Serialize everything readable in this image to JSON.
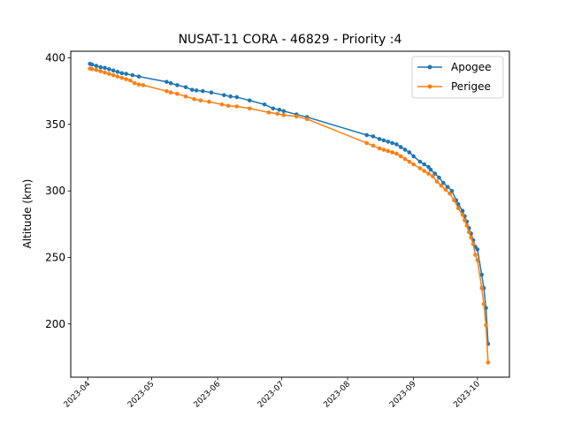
{
  "chart_data": {
    "type": "line",
    "title": "NUSAT-11 CORA - 46829 - Priority :4",
    "xlabel": "",
    "ylabel": "Altitude (km)",
    "x_tick_labels": [
      "2023-04",
      "2023-05",
      "2023-06",
      "2023-07",
      "2023-08",
      "2023-09",
      "2023-10"
    ],
    "y_ticks": [
      200,
      250,
      300,
      350,
      400
    ],
    "xlim": [
      "2023-03-24",
      "2023-10-16"
    ],
    "ylim": [
      160,
      405
    ],
    "legend": {
      "placement": "top-right"
    },
    "grid": false,
    "series": [
      {
        "name": "Apogee",
        "color": "#1f77b4",
        "points": [
          [
            "2023-04-02",
            395.5
          ],
          [
            "2023-04-03",
            395
          ],
          [
            "2023-04-05",
            394
          ],
          [
            "2023-04-07",
            393
          ],
          [
            "2023-04-09",
            392.5
          ],
          [
            "2023-04-11",
            391.5
          ],
          [
            "2023-04-13",
            390.5
          ],
          [
            "2023-04-15",
            389.5
          ],
          [
            "2023-04-17",
            388.5
          ],
          [
            "2023-04-19",
            388
          ],
          [
            "2023-04-22",
            387
          ],
          [
            "2023-04-25",
            386
          ],
          [
            "2023-05-08",
            382
          ],
          [
            "2023-05-10",
            381
          ],
          [
            "2023-05-13",
            379.5
          ],
          [
            "2023-05-17",
            378
          ],
          [
            "2023-05-20",
            376
          ],
          [
            "2023-05-22",
            375.5
          ],
          [
            "2023-05-25",
            375
          ],
          [
            "2023-05-29",
            374
          ],
          [
            "2023-06-04",
            372
          ],
          [
            "2023-06-07",
            371
          ],
          [
            "2023-06-10",
            370.5
          ],
          [
            "2023-06-16",
            368
          ],
          [
            "2023-06-23",
            365
          ],
          [
            "2023-06-27",
            362
          ],
          [
            "2023-06-30",
            361
          ],
          [
            "2023-07-02",
            360
          ],
          [
            "2023-07-08",
            357.5
          ],
          [
            "2023-07-13",
            355.5
          ],
          [
            "2023-08-10",
            342
          ],
          [
            "2023-08-13",
            341
          ],
          [
            "2023-08-16",
            339
          ],
          [
            "2023-08-18",
            338
          ],
          [
            "2023-08-20",
            337
          ],
          [
            "2023-08-22",
            336
          ],
          [
            "2023-08-24",
            335
          ],
          [
            "2023-08-26",
            333
          ],
          [
            "2023-08-28",
            331
          ],
          [
            "2023-08-30",
            329
          ],
          [
            "2023-09-01",
            326
          ],
          [
            "2023-09-04",
            322
          ],
          [
            "2023-09-06",
            320
          ],
          [
            "2023-09-08",
            318
          ],
          [
            "2023-09-09",
            316
          ],
          [
            "2023-09-11",
            313
          ],
          [
            "2023-09-13",
            310
          ],
          [
            "2023-09-15",
            306
          ],
          [
            "2023-09-17",
            303
          ],
          [
            "2023-09-19",
            300
          ],
          [
            "2023-09-21",
            293
          ],
          [
            "2023-09-22",
            290
          ],
          [
            "2023-09-24",
            285
          ],
          [
            "2023-09-25",
            281
          ],
          [
            "2023-09-26",
            277
          ],
          [
            "2023-09-27",
            272
          ],
          [
            "2023-09-28",
            268
          ],
          [
            "2023-09-29",
            263
          ],
          [
            "2023-09-30",
            258
          ],
          [
            "2023-10-01",
            256
          ],
          [
            "2023-10-03",
            237
          ],
          [
            "2023-10-04",
            227
          ],
          [
            "2023-10-05",
            212
          ],
          [
            "2023-10-06",
            185
          ]
        ]
      },
      {
        "name": "Perigee",
        "color": "#ff7f0e",
        "points": [
          [
            "2023-04-02",
            392
          ],
          [
            "2023-04-03",
            391.5
          ],
          [
            "2023-04-05",
            391
          ],
          [
            "2023-04-07",
            390
          ],
          [
            "2023-04-09",
            389
          ],
          [
            "2023-04-11",
            388
          ],
          [
            "2023-04-13",
            387
          ],
          [
            "2023-04-15",
            386
          ],
          [
            "2023-04-17",
            385
          ],
          [
            "2023-04-19",
            384
          ],
          [
            "2023-04-21",
            383
          ],
          [
            "2023-04-23",
            381
          ],
          [
            "2023-04-25",
            380
          ],
          [
            "2023-04-27",
            379.5
          ],
          [
            "2023-05-08",
            375
          ],
          [
            "2023-05-10",
            374
          ],
          [
            "2023-05-13",
            373
          ],
          [
            "2023-05-17",
            371
          ],
          [
            "2023-05-21",
            369
          ],
          [
            "2023-05-24",
            368
          ],
          [
            "2023-05-28",
            367
          ],
          [
            "2023-06-03",
            365
          ],
          [
            "2023-06-06",
            364
          ],
          [
            "2023-06-10",
            363.5
          ],
          [
            "2023-06-16",
            362
          ],
          [
            "2023-06-25",
            359
          ],
          [
            "2023-06-29",
            358
          ],
          [
            "2023-07-02",
            357
          ],
          [
            "2023-07-08",
            356
          ],
          [
            "2023-07-13",
            354
          ],
          [
            "2023-08-10",
            336
          ],
          [
            "2023-08-13",
            334
          ],
          [
            "2023-08-16",
            332
          ],
          [
            "2023-08-18",
            331
          ],
          [
            "2023-08-20",
            330
          ],
          [
            "2023-08-22",
            329
          ],
          [
            "2023-08-24",
            328
          ],
          [
            "2023-08-26",
            326
          ],
          [
            "2023-08-28",
            324
          ],
          [
            "2023-08-30",
            322
          ],
          [
            "2023-09-01",
            320
          ],
          [
            "2023-09-04",
            317
          ],
          [
            "2023-09-06",
            315
          ],
          [
            "2023-09-08",
            313
          ],
          [
            "2023-09-10",
            311
          ],
          [
            "2023-09-12",
            307
          ],
          [
            "2023-09-14",
            304
          ],
          [
            "2023-09-16",
            301
          ],
          [
            "2023-09-18",
            298
          ],
          [
            "2023-09-20",
            293
          ],
          [
            "2023-09-22",
            287
          ],
          [
            "2023-09-24",
            282
          ],
          [
            "2023-09-25",
            278
          ],
          [
            "2023-09-26",
            274
          ],
          [
            "2023-09-27",
            269
          ],
          [
            "2023-09-28",
            265
          ],
          [
            "2023-09-29",
            260
          ],
          [
            "2023-09-30",
            252
          ],
          [
            "2023-10-01",
            248
          ],
          [
            "2023-10-03",
            227
          ],
          [
            "2023-10-04",
            215
          ],
          [
            "2023-10-05",
            199
          ],
          [
            "2023-10-06",
            171
          ]
        ]
      }
    ]
  }
}
